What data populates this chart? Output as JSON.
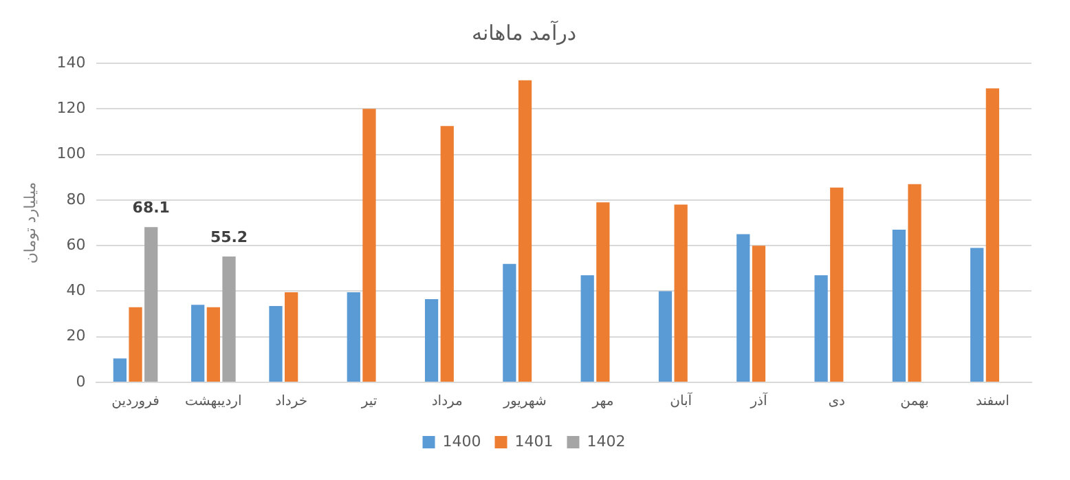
{
  "chart_data": {
    "type": "bar",
    "title": "درآمد ماهانه",
    "ylabel": "میلیارد تومان",
    "categories": [
      "فروردین",
      "اردیبهشت",
      "خرداد",
      "تیر",
      "مرداد",
      "شهریور",
      "مهر",
      "آبان",
      "آذر",
      "دی",
      "بهمن",
      "اسفند"
    ],
    "series": [
      {
        "name": "1400",
        "color": "#5b9bd5",
        "values": [
          10.5,
          34,
          33.5,
          39.5,
          36.5,
          52,
          47,
          40,
          65,
          47,
          67,
          59
        ]
      },
      {
        "name": "1401",
        "color": "#ed7d31",
        "values": [
          33,
          33,
          39.5,
          120,
          112.5,
          132.5,
          79,
          78,
          60,
          85.5,
          87,
          129
        ]
      },
      {
        "name": "1402",
        "color": "#a5a5a5",
        "values": [
          68.1,
          55.2,
          null,
          null,
          null,
          null,
          null,
          null,
          null,
          null,
          null,
          null
        ],
        "value_labels": [
          "68.1",
          "55.2",
          null,
          null,
          null,
          null,
          null,
          null,
          null,
          null,
          null,
          null
        ]
      }
    ],
    "ylim": [
      0,
      140
    ],
    "yticks": [
      0,
      20,
      40,
      60,
      80,
      100,
      120,
      140
    ],
    "grid": "y",
    "legend": "bottom"
  }
}
